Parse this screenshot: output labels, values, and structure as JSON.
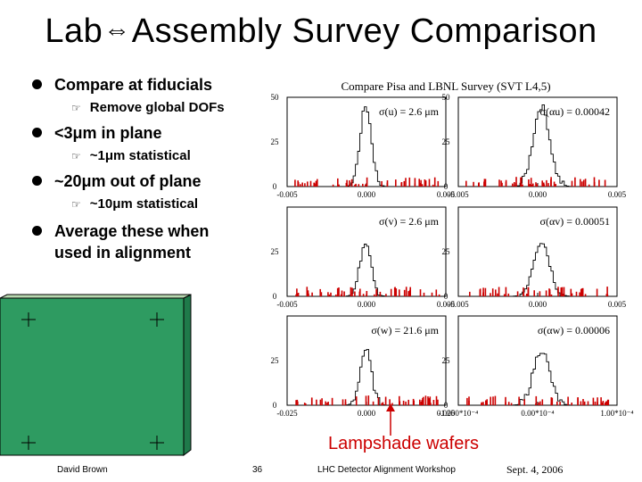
{
  "title": {
    "left": "Lab",
    "arrow": "⇔",
    "right": "Assembly Survey Comparison"
  },
  "bullets": {
    "b1": "Compare at fiducials",
    "b1_sub": "Remove global DOFs",
    "b2": "<3μm in plane",
    "b2_sub": "~1μm statistical",
    "b3": "~20μm out of plane",
    "b3_sub": "~10μm statistical",
    "b4_line1": "Average these when",
    "b4_line2": "used in alignment"
  },
  "panel_title": "Compare Pisa and LBNL Survey (SVT L4,5)",
  "chart_data": [
    {
      "type": "histogram",
      "label": "σ(u) = 2.6 μm",
      "ylim": [
        0,
        50
      ],
      "yticks": [
        "50",
        "25",
        "0"
      ],
      "xticks": [
        "-0.005",
        "0.000",
        "0.005"
      ]
    },
    {
      "type": "histogram",
      "label": "σ(αu) = 0.00042",
      "ylim": [
        0,
        50
      ],
      "yticks": [
        "50",
        "25",
        "0"
      ],
      "xticks": [
        "-0.005",
        "0.000",
        "0.005"
      ]
    },
    {
      "type": "histogram",
      "label": "σ(v) = 2.6 μm",
      "ylim": [
        0,
        50
      ],
      "yticks": [
        "25",
        "0"
      ],
      "xticks": [
        "-0.005",
        "0.000",
        "0.005"
      ]
    },
    {
      "type": "histogram",
      "label": "σ(αv) = 0.00051",
      "ylim": [
        0,
        50
      ],
      "yticks": [
        "25",
        "0"
      ],
      "xticks": [
        "-0.005",
        "0.000",
        "0.005"
      ]
    },
    {
      "type": "histogram",
      "label": "σ(w) = 21.6 μm",
      "ylim": [
        0,
        50
      ],
      "yticks": [
        "25",
        "0"
      ],
      "xticks": [
        "-0.025",
        "0.000",
        "0.025"
      ]
    },
    {
      "type": "histogram",
      "label": "σ(αw) = 0.00006",
      "ylim": [
        0,
        50
      ],
      "yticks": [
        "25",
        "0"
      ],
      "xticks": [
        "-1.000*10⁻⁴",
        "0.00*10⁻⁴",
        "1.00*10⁻⁴"
      ]
    }
  ],
  "annotation": "Lampshade wafers",
  "footer": {
    "author": "David Brown",
    "page": "36",
    "event": "LHC Detector Alignment Workshop",
    "date": "Sept. 4, 2006"
  },
  "colors": {
    "wafer_face": "#2e9b61",
    "wafer_side": "#1f7a4a",
    "wafer_top": "#b8d8b0",
    "signal": "#000000",
    "data_marks": "#cc0000",
    "annotation": "#cc0000"
  }
}
